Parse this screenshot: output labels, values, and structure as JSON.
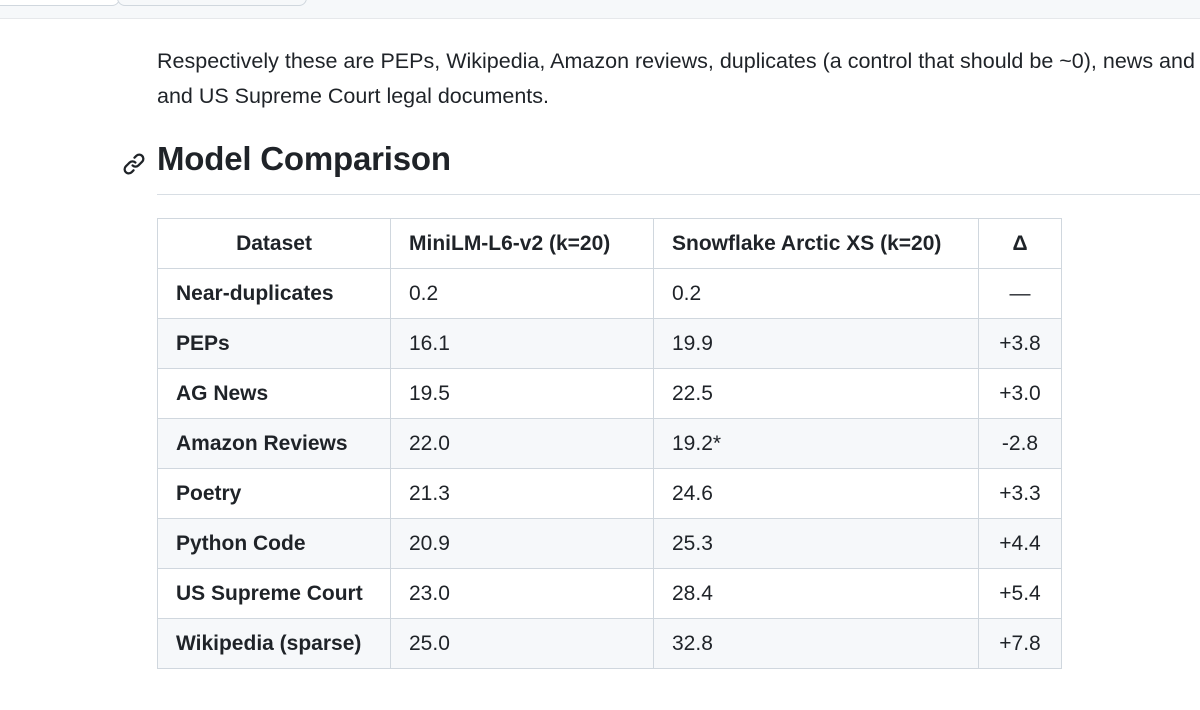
{
  "paragraph": {
    "line1": "Respectively these are PEPs, Wikipedia, Amazon reviews, duplicates (a control that should be ~0), news and",
    "line2": "and US Supreme Court legal documents."
  },
  "section": {
    "title": "Model Comparison",
    "anchor_icon": "link-icon"
  },
  "table": {
    "headers": [
      "Dataset",
      "MiniLM-L6-v2 (k=20)",
      "Snowflake Arctic XS (k=20)",
      "Δ"
    ],
    "rows": [
      {
        "dataset": "Near-duplicates",
        "minilm": "0.2",
        "snowflake": "0.2",
        "delta": "—"
      },
      {
        "dataset": "PEPs",
        "minilm": "16.1",
        "snowflake": "19.9",
        "delta": "+3.8"
      },
      {
        "dataset": "AG News",
        "minilm": "19.5",
        "snowflake": "22.5",
        "delta": "+3.0"
      },
      {
        "dataset": "Amazon Reviews",
        "minilm": "22.0",
        "snowflake": "19.2*",
        "delta": "-2.8"
      },
      {
        "dataset": "Poetry",
        "minilm": "21.3",
        "snowflake": "24.6",
        "delta": "+3.3"
      },
      {
        "dataset": "Python Code",
        "minilm": "20.9",
        "snowflake": "25.3",
        "delta": "+4.4"
      },
      {
        "dataset": "US Supreme Court",
        "minilm": "23.0",
        "snowflake": "28.4",
        "delta": "+5.4"
      },
      {
        "dataset": "Wikipedia (sparse)",
        "minilm": "25.0",
        "snowflake": "32.8",
        "delta": "+7.8"
      }
    ]
  },
  "colors": {
    "text": "#1f2328",
    "border": "#d0d7de",
    "stripe": "#f6f8fa"
  }
}
